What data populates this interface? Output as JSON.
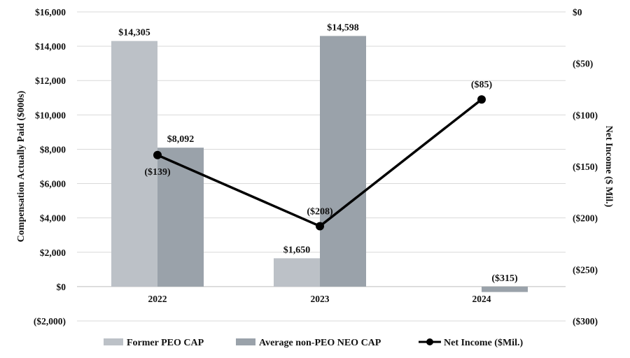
{
  "chart_data": {
    "type": "bar",
    "title": "",
    "categories": [
      "2022",
      "2023",
      "2024"
    ],
    "ylabel": "Compensation Actually Paid ($000s)",
    "ylabel_right": "Net Income ($ Mil.)",
    "ylim": [
      -2000,
      16000
    ],
    "ylim_right": [
      -300,
      0
    ],
    "yticks": [
      16000,
      14000,
      12000,
      10000,
      8000,
      6000,
      4000,
      2000,
      0,
      -2000
    ],
    "ytick_labels": [
      "$16,000",
      "$14,000",
      "$12,000",
      "$10,000",
      "$8,000",
      "$6,000",
      "$4,000",
      "$2,000",
      "$0",
      "($2,000)"
    ],
    "yticks_right": [
      0,
      -50,
      -100,
      -150,
      -200,
      -250,
      -300
    ],
    "ytick_labels_right": [
      "$0",
      "($50)",
      "($100)",
      "($150)",
      "($200)",
      "($250)",
      "($300)"
    ],
    "grid": true,
    "legend_position": "bottom",
    "series": [
      {
        "name": "Former PEO CAP",
        "kind": "bar",
        "axis": "left",
        "color": "#bcc1c7",
        "values": [
          14305,
          1650,
          null
        ],
        "labels": [
          "$14,305",
          "$1,650",
          ""
        ]
      },
      {
        "name": "Average non-PEO NEO CAP",
        "kind": "bar",
        "axis": "left",
        "color": "#9aa2aa",
        "values": [
          8092,
          14598,
          -315
        ],
        "labels": [
          "$8,092",
          "$14,598",
          "($315)"
        ]
      },
      {
        "name": "Net Income ($Mil.)",
        "kind": "line",
        "axis": "right",
        "color": "#000000",
        "values": [
          -139,
          -208,
          -85
        ],
        "labels": [
          "($139)",
          "($208)",
          "($85)"
        ]
      }
    ]
  }
}
